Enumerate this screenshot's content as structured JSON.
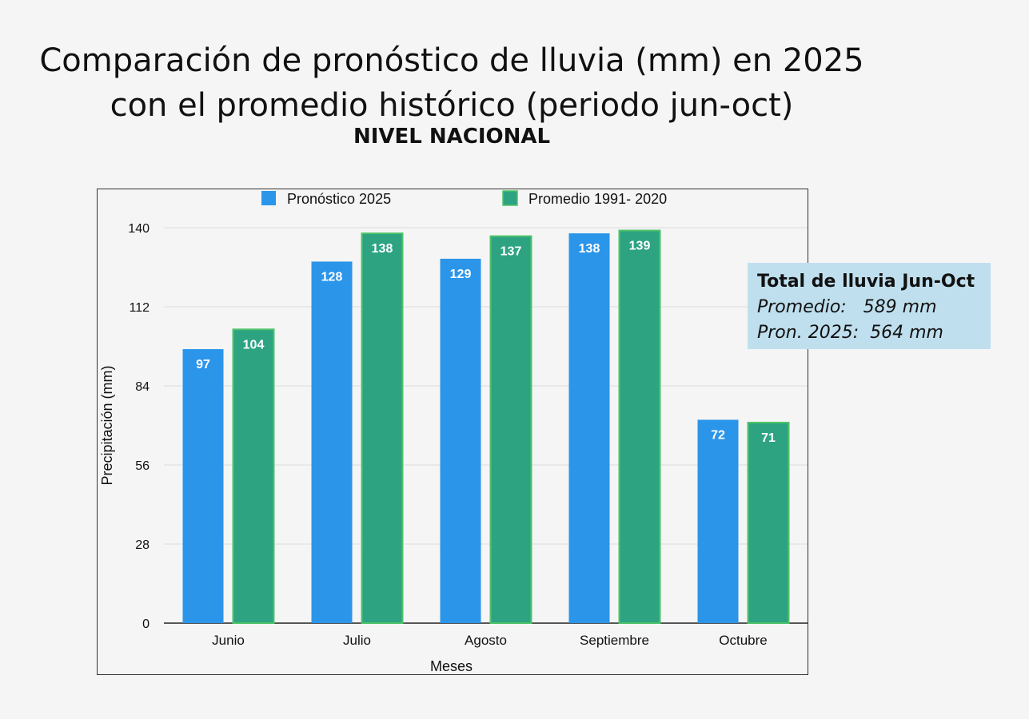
{
  "title": "Comparación de pronóstico de lluvia (mm) en 2025 con el promedio histórico (periodo jun-oct)",
  "subtitle": "NIVEL NACIONAL",
  "colors": {
    "pronostico": "#2b95ea",
    "promedio": "#2da382",
    "promedio_border": "#4ec46a",
    "grid": "#dcdcdc",
    "label": "#ffffff"
  },
  "chart_data": {
    "type": "bar",
    "categories": [
      "Junio",
      "Julio",
      "Agosto",
      "Septiembre",
      "Octubre"
    ],
    "series": [
      {
        "name": "Pronóstico 2025",
        "values": [
          97,
          128,
          129,
          138,
          72
        ]
      },
      {
        "name": "Promedio 1991- 2020",
        "values": [
          104,
          138,
          137,
          139,
          71
        ]
      }
    ],
    "xlabel": "Meses",
    "ylabel": "Precipitación (mm)",
    "ylim": [
      0,
      140
    ],
    "yticks": [
      0,
      28,
      56,
      84,
      112,
      140
    ],
    "legend": "top",
    "grid": true
  },
  "info_box": {
    "heading": "Total de lluvia Jun-Oct",
    "line1": "Promedio:   589 mm",
    "line2": "Pron. 2025:  564 mm"
  }
}
